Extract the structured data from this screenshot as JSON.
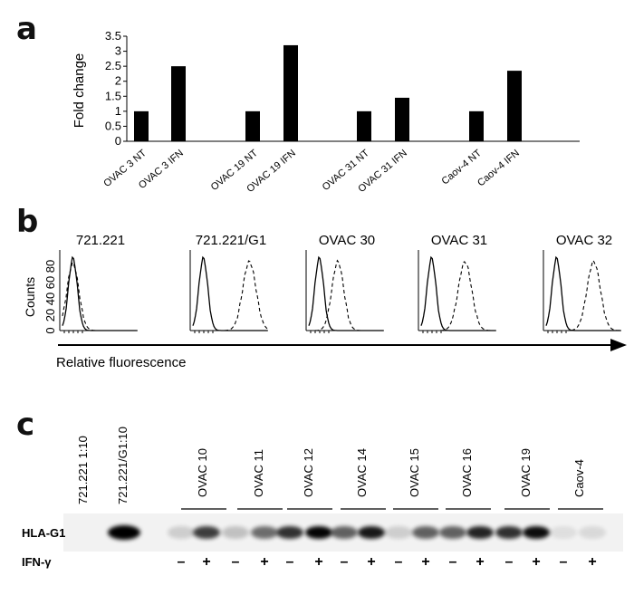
{
  "figure": {
    "panel_labels": {
      "a": "a",
      "b": "b",
      "c": "c"
    }
  },
  "chart_data": [
    {
      "type": "bar",
      "panel": "a",
      "ylabel": "Fold change",
      "ylim": [
        0,
        3.5
      ],
      "yticks": [
        "0",
        "0.5",
        "1",
        "1.5",
        "2",
        "2.5",
        "3",
        "3.5"
      ],
      "categories": [
        "OVAC 3 NT",
        "OVAC 3 IFN",
        "OVAC 19 NT",
        "OVAC 19 IFN",
        "OVAC 31 NT",
        "OVAC 31 IFN",
        "Caov-4 NT",
        "Caov-4 IFN"
      ],
      "values": [
        1,
        2.5,
        1,
        3.2,
        1,
        1.45,
        1,
        2.35
      ],
      "bar_color": "#000000"
    },
    {
      "type": "histogram",
      "panel": "b",
      "ylabel": "Counts",
      "yticks": [
        "0",
        "20",
        "40",
        "60",
        "80"
      ],
      "xlabel": "Relative fluorescence",
      "samples": [
        "721.221",
        "721.221/G1",
        "OVAC 30",
        "OVAC 31",
        "OVAC 32"
      ],
      "dashed_peak_shift": [
        0,
        0.62,
        0.25,
        0.45,
        0.5
      ]
    }
  ],
  "panel_c": {
    "control_lanes": [
      "721.221 1:10",
      "721.221/G1:10"
    ],
    "groups": [
      "OVAC 10",
      "OVAC 11",
      "OVAC 12",
      "OVAC 14",
      "OVAC 15",
      "OVAC 16",
      "OVAC 19",
      "Caov-4"
    ],
    "row_label_blot": "HLA-G1",
    "row_label_treatment": "IFN-γ",
    "minus": "–",
    "plus": "+"
  }
}
